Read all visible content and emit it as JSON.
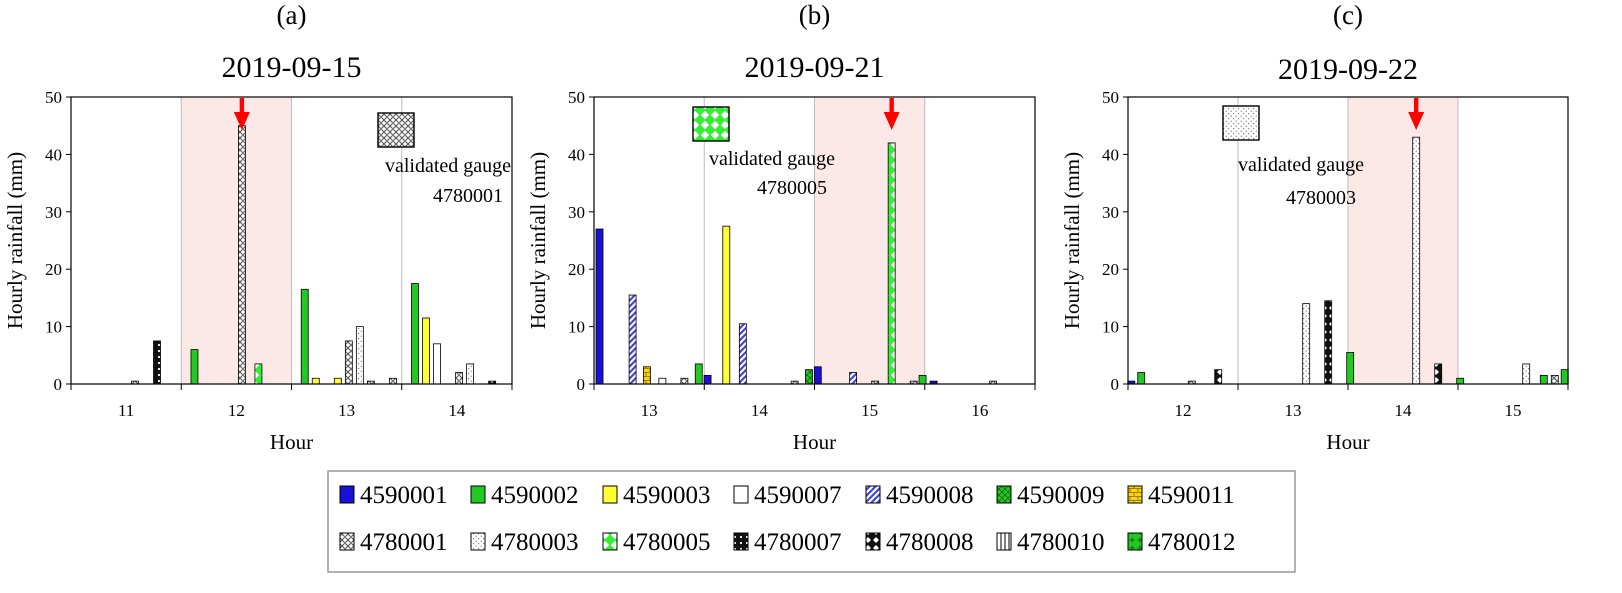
{
  "colors": {
    "highlight": "#fde8e8",
    "arrow": "#ff0000",
    "legend_border": "#999999",
    "4590001": "#1a10d6",
    "4590002": "#22c922",
    "4590003": "#ffff33",
    "4590007": "#ffffff",
    "4590008": "#4444dd",
    "4590009": "#22c922",
    "4590011": "#ffd700",
    "4780001": "#999999",
    "4780003": "#ffffff",
    "4780005": "#33ee33",
    "4780007": "#111111",
    "4780008": "#111111",
    "4780010": "#ffffff",
    "4780012": "#22c922"
  },
  "legend": {
    "items": [
      {
        "label": "4590001",
        "pattern": "solid-blue"
      },
      {
        "label": "4590002",
        "pattern": "solid-green"
      },
      {
        "label": "4590003",
        "pattern": "solid-yellow"
      },
      {
        "label": "4590007",
        "pattern": "solid-white"
      },
      {
        "label": "4590008",
        "pattern": "diagonal-blue"
      },
      {
        "label": "4590009",
        "pattern": "crosshatch-green"
      },
      {
        "label": "4590011",
        "pattern": "brick-yellow"
      },
      {
        "label": "4780001",
        "pattern": "checker-grey"
      },
      {
        "label": "4780003",
        "pattern": "dots-white"
      },
      {
        "label": "4780005",
        "pattern": "diamond-green"
      },
      {
        "label": "4780007",
        "pattern": "dots-black"
      },
      {
        "label": "4780008",
        "pattern": "cross-black"
      },
      {
        "label": "4780010",
        "pattern": "vlines-white"
      },
      {
        "label": "4780012",
        "pattern": "plus-green"
      }
    ]
  },
  "chart_data": [
    {
      "type": "bar",
      "panel": "(a)",
      "title": "2019-09-15",
      "xlabel": "Hour",
      "ylabel": "Hourly rainfall (mm)",
      "ylim": [
        0,
        50
      ],
      "yticks": [
        0,
        10,
        20,
        30,
        40,
        50
      ],
      "xlim": [
        10.5,
        14.5
      ],
      "xticks": [
        11,
        12,
        13,
        14
      ],
      "highlight": [
        11.5,
        12.5
      ],
      "arrow_at": 12.05,
      "gauge_note": {
        "line1": "validated gauge",
        "line2": "4780001",
        "pattern": "checker-grey"
      },
      "bars": [
        {
          "x": 11.08,
          "value": 0.5,
          "gauge": "4780001"
        },
        {
          "x": 11.28,
          "value": 7.5,
          "gauge": "4780007"
        },
        {
          "x": 11.62,
          "value": 6.0,
          "gauge": "4590002"
        },
        {
          "x": 12.05,
          "value": 45.0,
          "gauge": "4780001"
        },
        {
          "x": 12.2,
          "value": 3.5,
          "gauge": "4780005"
        },
        {
          "x": 12.62,
          "value": 16.5,
          "gauge": "4590002"
        },
        {
          "x": 12.72,
          "value": 1.0,
          "gauge": "4590003"
        },
        {
          "x": 12.92,
          "value": 1.0,
          "gauge": "4590003"
        },
        {
          "x": 13.02,
          "value": 7.5,
          "gauge": "4780001"
        },
        {
          "x": 13.12,
          "value": 10.0,
          "gauge": "4780003"
        },
        {
          "x": 13.22,
          "value": 0.5,
          "gauge": "4780001"
        },
        {
          "x": 13.42,
          "value": 1.0,
          "gauge": "4780001"
        },
        {
          "x": 13.62,
          "value": 17.5,
          "gauge": "4590002"
        },
        {
          "x": 13.72,
          "value": 11.5,
          "gauge": "4590003"
        },
        {
          "x": 13.82,
          "value": 7.0,
          "gauge": "4590007"
        },
        {
          "x": 14.02,
          "value": 2.0,
          "gauge": "4780001"
        },
        {
          "x": 14.12,
          "value": 3.5,
          "gauge": "4780003"
        },
        {
          "x": 14.32,
          "value": 0.5,
          "gauge": "4780008"
        }
      ]
    },
    {
      "type": "bar",
      "panel": "(b)",
      "title": "2019-09-21",
      "xlabel": "Hour",
      "ylabel": "Hourly rainfall (mm)",
      "ylim": [
        0,
        50
      ],
      "yticks": [
        0,
        10,
        20,
        30,
        40,
        50
      ],
      "xlim": [
        12.5,
        16.5
      ],
      "xticks": [
        13,
        14,
        15,
        16
      ],
      "highlight": [
        14.5,
        15.5
      ],
      "arrow_at": 15.2,
      "gauge_note": {
        "line1": "validated gauge",
        "line2": "4780005",
        "pattern": "diamond-green"
      },
      "bars": [
        {
          "x": 12.55,
          "value": 27.0,
          "gauge": "4590001"
        },
        {
          "x": 12.85,
          "value": 15.5,
          "gauge": "4590008"
        },
        {
          "x": 12.98,
          "value": 3.0,
          "gauge": "4590011"
        },
        {
          "x": 13.12,
          "value": 1.0,
          "gauge": "4590007"
        },
        {
          "x": 13.32,
          "value": 1.0,
          "gauge": "4780001"
        },
        {
          "x": 13.45,
          "value": 3.5,
          "gauge": "4590002"
        },
        {
          "x": 13.53,
          "value": 1.5,
          "gauge": "4590001"
        },
        {
          "x": 13.7,
          "value": 27.5,
          "gauge": "4590003"
        },
        {
          "x": 13.85,
          "value": 10.5,
          "gauge": "4590008"
        },
        {
          "x": 14.32,
          "value": 0.5,
          "gauge": "4780001"
        },
        {
          "x": 14.45,
          "value": 2.5,
          "gauge": "4590009"
        },
        {
          "x": 14.53,
          "value": 3.0,
          "gauge": "4590001"
        },
        {
          "x": 14.85,
          "value": 2.0,
          "gauge": "4590008"
        },
        {
          "x": 15.05,
          "value": 0.5,
          "gauge": "4780001"
        },
        {
          "x": 15.2,
          "value": 42.0,
          "gauge": "4780005"
        },
        {
          "x": 15.4,
          "value": 0.5,
          "gauge": "4780001"
        },
        {
          "x": 15.48,
          "value": 1.5,
          "gauge": "4590002"
        },
        {
          "x": 15.58,
          "value": 0.5,
          "gauge": "4590001"
        },
        {
          "x": 16.12,
          "value": 0.5,
          "gauge": "4780001"
        }
      ]
    },
    {
      "type": "bar",
      "panel": "(c)",
      "title": "2019-09-22",
      "xlabel": "Hour",
      "ylabel": "Hourly rainfall (mm)",
      "ylim": [
        0,
        50
      ],
      "yticks": [
        0,
        10,
        20,
        30,
        40,
        50
      ],
      "xlim": [
        11.5,
        15.5
      ],
      "xticks": [
        12,
        13,
        14,
        15
      ],
      "highlight": [
        13.5,
        14.5
      ],
      "arrow_at": 14.12,
      "gauge_note": {
        "line1": "validated gauge",
        "line2": "4780003",
        "pattern": "dots-white"
      },
      "bars": [
        {
          "x": 11.53,
          "value": 0.5,
          "gauge": "4590001"
        },
        {
          "x": 11.62,
          "value": 2.0,
          "gauge": "4590002"
        },
        {
          "x": 12.08,
          "value": 0.5,
          "gauge": "4780001"
        },
        {
          "x": 12.32,
          "value": 2.5,
          "gauge": "4780008"
        },
        {
          "x": 13.12,
          "value": 14.0,
          "gauge": "4780003"
        },
        {
          "x": 13.32,
          "value": 14.5,
          "gauge": "4780008"
        },
        {
          "x": 13.52,
          "value": 5.5,
          "gauge": "4590002"
        },
        {
          "x": 14.12,
          "value": 43.0,
          "gauge": "4780003"
        },
        {
          "x": 14.32,
          "value": 3.5,
          "gauge": "4780008"
        },
        {
          "x": 14.52,
          "value": 1.0,
          "gauge": "4590002"
        },
        {
          "x": 15.12,
          "value": 3.5,
          "gauge": "4780003"
        },
        {
          "x": 15.28,
          "value": 1.5,
          "gauge": "4590002"
        },
        {
          "x": 15.38,
          "value": 1.5,
          "gauge": "4780001"
        },
        {
          "x": 15.47,
          "value": 2.5,
          "gauge": "4590002"
        }
      ]
    }
  ]
}
